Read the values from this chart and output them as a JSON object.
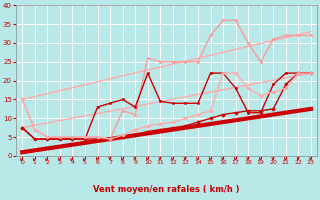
{
  "xlabel": "Vent moyen/en rafales ( km/h )",
  "background_color": "#b8e8e8",
  "grid_color": "#a0d0d0",
  "xlim": [
    -0.5,
    23.5
  ],
  "ylim": [
    0,
    40
  ],
  "xticks": [
    0,
    1,
    2,
    3,
    4,
    5,
    6,
    7,
    8,
    9,
    10,
    11,
    12,
    13,
    14,
    15,
    16,
    17,
    18,
    19,
    20,
    21,
    22,
    23
  ],
  "yticks": [
    0,
    5,
    10,
    15,
    20,
    25,
    30,
    35,
    40
  ],
  "lines": [
    {
      "x": [
        0,
        1,
        2,
        3,
        4,
        5,
        6,
        7,
        8,
        9,
        10,
        11,
        12,
        13,
        14,
        15,
        16,
        17,
        18,
        19,
        20,
        21,
        22,
        23
      ],
      "y": [
        1,
        1.5,
        2,
        2.5,
        3,
        3.5,
        4,
        4.5,
        5,
        5.5,
        6,
        6.5,
        7,
        7.5,
        8,
        8.5,
        9,
        9.5,
        10,
        10.5,
        11,
        11.5,
        12,
        12.5
      ],
      "color": "#cc0000",
      "lw": 3.0,
      "marker": null
    },
    {
      "x": [
        0,
        23
      ],
      "y": [
        15,
        33
      ],
      "color": "#ffaaaa",
      "lw": 1.0,
      "marker": null
    },
    {
      "x": [
        0,
        23
      ],
      "y": [
        7.5,
        22
      ],
      "color": "#ffaaaa",
      "lw": 1.0,
      "marker": null
    },
    {
      "x": [
        0,
        1,
        2,
        3,
        4,
        5,
        6,
        7,
        8,
        9,
        10,
        11,
        12,
        13,
        14,
        15,
        16,
        17,
        18,
        19,
        20,
        21,
        22,
        23
      ],
      "y": [
        15,
        7,
        5,
        5,
        5,
        5,
        5,
        4.5,
        12,
        11,
        26,
        25,
        25,
        25,
        25,
        32,
        36,
        36,
        30,
        25,
        31,
        32,
        32,
        32
      ],
      "color": "#ff9999",
      "lw": 1.0,
      "marker": ".",
      "ms": 3
    },
    {
      "x": [
        0,
        1,
        2,
        3,
        4,
        5,
        6,
        7,
        8,
        9,
        10,
        11,
        12,
        13,
        14,
        15,
        16,
        17,
        18,
        19,
        20,
        21,
        22,
        23
      ],
      "y": [
        7.5,
        4.5,
        4.5,
        4.5,
        4.5,
        4.5,
        13,
        14,
        15,
        13,
        22,
        14.5,
        14,
        14,
        14,
        22,
        22,
        18,
        11.5,
        11.5,
        19,
        22,
        22,
        22
      ],
      "color": "#cc0000",
      "lw": 1.0,
      "marker": ".",
      "ms": 3
    },
    {
      "x": [
        0,
        1,
        2,
        3,
        4,
        5,
        6,
        7,
        8,
        9,
        10,
        11,
        12,
        13,
        14,
        15,
        16,
        17,
        18,
        19,
        20,
        21,
        22,
        23
      ],
      "y": [
        7.5,
        4.5,
        4.5,
        4.5,
        4.5,
        4.5,
        4.5,
        4.5,
        5,
        5.5,
        6.5,
        7,
        7.5,
        8,
        9,
        10,
        11,
        11.5,
        12,
        12,
        12.5,
        19,
        22,
        22
      ],
      "color": "#cc0000",
      "lw": 1.0,
      "marker": "D",
      "ms": 1.8
    },
    {
      "x": [
        0,
        1,
        2,
        3,
        4,
        5,
        6,
        7,
        8,
        9,
        10,
        11,
        12,
        13,
        14,
        15,
        16,
        17,
        18,
        19,
        20,
        21,
        22,
        23
      ],
      "y": [
        15,
        7,
        5,
        5,
        5,
        5,
        5,
        4.5,
        5.5,
        7,
        8,
        8.5,
        9,
        10,
        11,
        12,
        22,
        22,
        18,
        16,
        17,
        18,
        22,
        22
      ],
      "color": "#ffaaaa",
      "lw": 1.0,
      "marker": "D",
      "ms": 1.8
    }
  ],
  "arrow_color": "#cc0000",
  "arrow_directions": [
    270,
    270,
    270,
    250,
    270,
    270,
    225,
    210,
    225,
    225,
    225,
    225,
    225,
    225,
    225,
    225,
    225,
    225,
    225,
    225,
    225,
    225,
    225,
    225
  ]
}
